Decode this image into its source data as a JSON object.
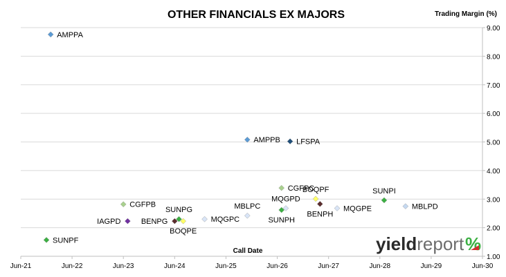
{
  "chart_data": {
    "type": "scatter",
    "title": "OTHER FINANCIALS EX MAJORS",
    "ylabel": "Trading Margin (%)",
    "xlabel": "Call Date",
    "x_ticks": [
      "Jun-21",
      "Jun-22",
      "Jun-23",
      "Jun-24",
      "Jun-25",
      "Jun-26",
      "Jun-27",
      "Jun-28",
      "Jun-29",
      "Jun-30"
    ],
    "y_ticks": [
      "1.00",
      "2.00",
      "3.00",
      "4.00",
      "5.00",
      "6.00",
      "7.00",
      "8.00",
      "9.00"
    ],
    "ylim": [
      1.0,
      9.0
    ],
    "xlim": [
      "Jun-21",
      "Jun-30"
    ],
    "y_axis_position": "right",
    "grid": true,
    "points": [
      {
        "name": "AMPPA",
        "x": "Jan-22",
        "y": 8.76,
        "color": "#5b9bd5",
        "label_pos": "right"
      },
      {
        "name": "AMPPB",
        "x": "Nov-25",
        "y": 5.08,
        "color": "#5b9bd5",
        "label_pos": "right"
      },
      {
        "name": "LFSPA",
        "x": "Sep-26",
        "y": 5.02,
        "color": "#1f4e79",
        "label_pos": "right"
      },
      {
        "name": "CGFPC",
        "x": "Jul-26",
        "y": 3.39,
        "color": "#a9d18e",
        "label_pos": "right"
      },
      {
        "name": "BOQPF",
        "x": "Mar-27",
        "y": 3.01,
        "color": "#ffff66",
        "label_pos": "above"
      },
      {
        "name": "SUNPI",
        "x": "Jul-28",
        "y": 2.96,
        "color": "#3cb043",
        "label_pos": "above"
      },
      {
        "name": "CGFPB",
        "x": "Jun-23",
        "y": 2.82,
        "color": "#a9d18e",
        "label_pos": "right"
      },
      {
        "name": "MQGPD",
        "x": "Aug-26",
        "y": 2.68,
        "color": "#d9e5f7",
        "label_pos": "above"
      },
      {
        "name": "MBLPC",
        "x": "Nov-25",
        "y": 2.42,
        "color": "#d9e5f7",
        "label_pos": "above"
      },
      {
        "name": "SUNPG",
        "x": "Jul-24",
        "y": 2.3,
        "color": "#3cb043",
        "label_pos": "above"
      },
      {
        "name": "SUNPH",
        "x": "Jul-26",
        "y": 2.62,
        "color": "#3cb043",
        "label_pos": "below"
      },
      {
        "name": "BENPH",
        "x": "Apr-27",
        "y": 2.83,
        "color": "#5a2d2d",
        "label_pos": "below"
      },
      {
        "name": "MQGPE",
        "x": "Aug-27",
        "y": 2.68,
        "color": "#d9e5f7",
        "label_pos": "right"
      },
      {
        "name": "MBLPD",
        "x": "Dec-28",
        "y": 2.75,
        "color": "#c5d9f1",
        "label_pos": "right"
      },
      {
        "name": "IAGPD",
        "x": "Jul-23",
        "y": 2.23,
        "color": "#7030a0",
        "label_pos": "left"
      },
      {
        "name": "BENPG",
        "x": "Jun-24",
        "y": 2.23,
        "color": "#5a2d2d",
        "label_pos": "left"
      },
      {
        "name": "BOQPE",
        "x": "Aug-24",
        "y": 2.23,
        "color": "#ffff66",
        "label_pos": "below"
      },
      {
        "name": "MQGPC",
        "x": "Jan-25",
        "y": 2.3,
        "color": "#d9e5f7",
        "label_pos": "right"
      },
      {
        "name": "SUNPF",
        "x": "Dec-21",
        "y": 1.57,
        "color": "#3cb043",
        "label_pos": "right"
      }
    ]
  },
  "logo": {
    "brand_prefix": "yield",
    "brand_suffix": "report",
    "mark": "%",
    "colors": {
      "percent_top": "#3cb043",
      "percent_bottom": "#d32f2f"
    }
  }
}
